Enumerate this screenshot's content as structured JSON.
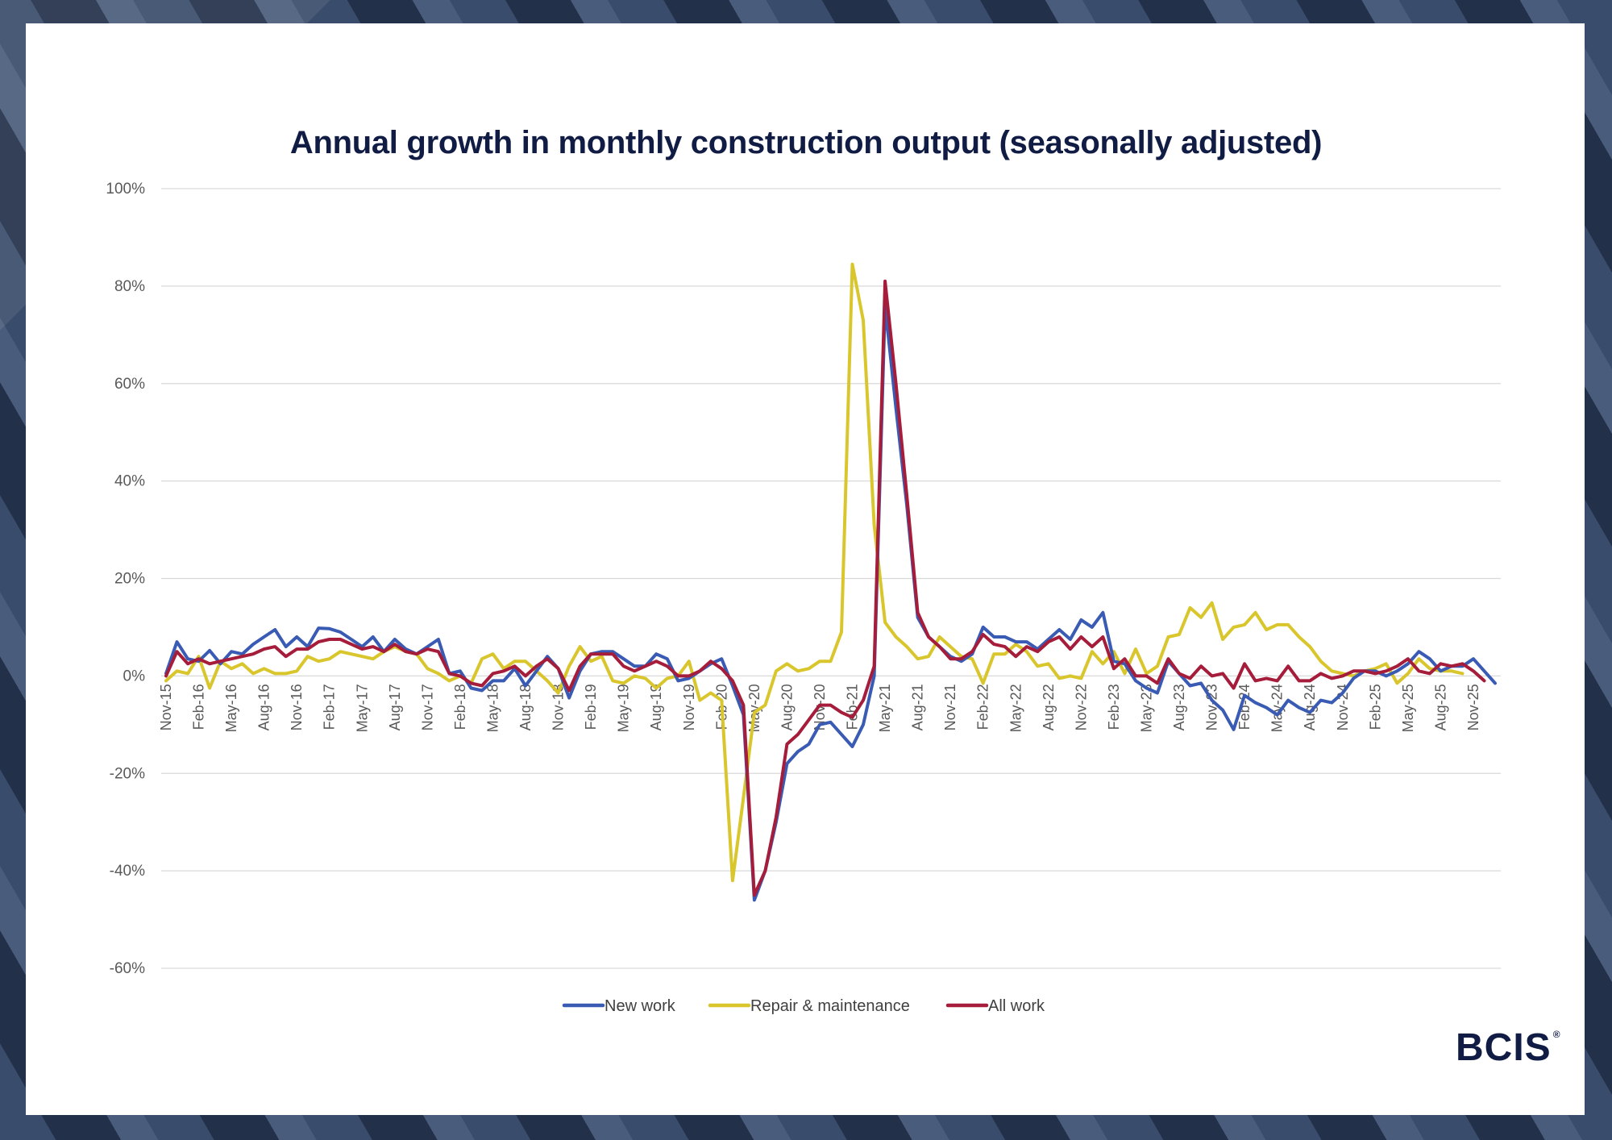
{
  "chart_data": {
    "type": "line",
    "title": "Annual growth in monthly construction output (seasonally adjusted)",
    "xlabel": "",
    "ylabel": "",
    "ylim": [
      -60,
      100
    ],
    "y_ticks": [
      100,
      80,
      60,
      40,
      20,
      0,
      -20,
      -40,
      -60
    ],
    "y_tick_labels": [
      "100%",
      "80%",
      "60%",
      "40%",
      "20%",
      "0%",
      "-20%",
      "-40%",
      "-60%"
    ],
    "x_tick_labels": [
      "Nov-15",
      "Feb-16",
      "May-16",
      "Aug-16",
      "Nov-16",
      "Feb-17",
      "May-17",
      "Aug-17",
      "Nov-17",
      "Feb-18",
      "May-18",
      "Aug-18",
      "Nov-18",
      "Feb-19",
      "May-19",
      "Aug-19",
      "Nov-19",
      "Feb-20",
      "May-20",
      "Aug-20",
      "Nov-20",
      "Feb-21",
      "May-21",
      "Aug-21",
      "Nov-21",
      "Feb-22",
      "May-22",
      "Aug-22",
      "Nov-22",
      "Feb-23",
      "May-23",
      "Aug-23",
      "Nov-23",
      "Feb-24",
      "May-24",
      "Aug-24",
      "Nov-24",
      "Feb-25",
      "May-25",
      "Aug-25",
      "Nov-25"
    ],
    "x_start": "Nov-15",
    "x_end": "Nov-25",
    "grid": "horizontal",
    "legend_position": "bottom",
    "series": [
      {
        "name": "New work",
        "color": "#3a5bb4",
        "values": [
          0.5,
          7,
          3.5,
          3,
          5.2,
          2.5,
          5,
          4.5,
          6.5,
          8,
          9.5,
          6,
          8,
          6,
          9.8,
          9.7,
          9,
          7.5,
          6,
          8,
          5,
          7.5,
          5.5,
          4.5,
          6,
          7.5,
          0.5,
          1,
          -2.5,
          -3,
          -1,
          -1,
          1.5,
          -2,
          1,
          4,
          1.5,
          -4.5,
          1,
          4.5,
          5,
          5,
          3.5,
          2,
          2,
          4.5,
          3.5,
          -1,
          -0.5,
          1,
          2.5,
          3.5,
          -2,
          -8,
          -46,
          -40,
          -30,
          -18,
          -15.5,
          -14,
          -10,
          -9.5,
          -12,
          -14.5,
          -10,
          0,
          76,
          55,
          35,
          12,
          8,
          6,
          4,
          3,
          4.5,
          10,
          8,
          8,
          7,
          7,
          5.5,
          7.5,
          9.5,
          7.5,
          11.5,
          10,
          13,
          3,
          2.5,
          -1,
          -2.5,
          -3.5,
          3,
          0.5,
          -2,
          -1.5,
          -5,
          -7,
          -11,
          -4,
          -5.5,
          -6.5,
          -8,
          -5,
          -6.5,
          -7.5,
          -5,
          -5.5,
          -3.5,
          -0.5,
          1,
          1,
          0,
          1,
          2.5,
          5,
          3.5,
          1,
          2,
          2,
          3.5,
          1,
          -1.5
        ]
      },
      {
        "name": "Repair & maintenance",
        "color": "#d9c62d",
        "values": [
          -1,
          1,
          0.5,
          4,
          -2.5,
          3,
          1.5,
          2.5,
          0.5,
          1.5,
          0.5,
          0.5,
          1,
          4,
          3,
          3.5,
          5,
          4.5,
          4,
          3.5,
          5,
          6,
          5,
          4.5,
          1.5,
          0.5,
          -1,
          0,
          -1.5,
          3.5,
          4.5,
          1.5,
          3,
          3,
          1,
          -1,
          -3.5,
          2,
          6,
          3,
          4,
          -1,
          -1.5,
          0,
          -0.5,
          -2.5,
          -0.5,
          0,
          3,
          -5,
          -3.5,
          -5,
          -42,
          -25,
          -7.5,
          -6,
          1,
          2.5,
          1,
          1.5,
          3,
          3,
          9,
          84.5,
          73,
          31,
          11,
          8,
          6,
          3.5,
          4,
          8,
          6,
          4,
          3.5,
          -1.5,
          4.5,
          4.5,
          6.5,
          5,
          2,
          2.5,
          -0.5,
          0,
          -0.5,
          5,
          2.5,
          5,
          0.5,
          5.5,
          0.5,
          2,
          8,
          8.5,
          14,
          12,
          15,
          7.5,
          10,
          10.5,
          13,
          9.5,
          10.5,
          10.5,
          8,
          6,
          3,
          1,
          0.5,
          0,
          1,
          1.5,
          2.5,
          -1.5,
          0.5,
          3.5,
          1.5,
          1,
          1,
          0.5
        ]
      },
      {
        "name": "All work",
        "color": "#a51d3a",
        "values": [
          0,
          5,
          2.5,
          3.5,
          2.5,
          3,
          3.5,
          4,
          4.5,
          5.5,
          6,
          4,
          5.5,
          5.5,
          7,
          7.5,
          7.5,
          6.5,
          5.5,
          6,
          5,
          6.5,
          5,
          4.5,
          5.5,
          5,
          0.5,
          0,
          -1.5,
          -2,
          0.5,
          1,
          2,
          0,
          2,
          3.5,
          1.5,
          -3,
          2,
          4.5,
          4.5,
          4.5,
          2,
          1,
          2,
          3,
          2,
          0,
          0,
          1,
          3,
          1.5,
          -1,
          -6,
          -45,
          -40,
          -29,
          -14,
          -12,
          -9,
          -6,
          -6,
          -7.5,
          -8.5,
          -5,
          2,
          81,
          60,
          37,
          13,
          8,
          6,
          3.5,
          3.5,
          5,
          8.5,
          6.5,
          6,
          4,
          6,
          5,
          7,
          8,
          5.5,
          8,
          6,
          8,
          1.5,
          3.5,
          0,
          0,
          -1.5,
          3.5,
          0.5,
          -0.5,
          2,
          0,
          0.5,
          -2.5,
          2.5,
          -1,
          -0.5,
          -1,
          2,
          -1,
          -1,
          0.5,
          -0.5,
          0,
          1,
          1,
          0.5,
          1,
          2,
          3.5,
          1,
          0.5,
          2.5,
          2,
          2.5,
          1,
          -1
        ]
      }
    ]
  },
  "brand": {
    "logo_text": "BCIS",
    "logo_mark": "®"
  }
}
